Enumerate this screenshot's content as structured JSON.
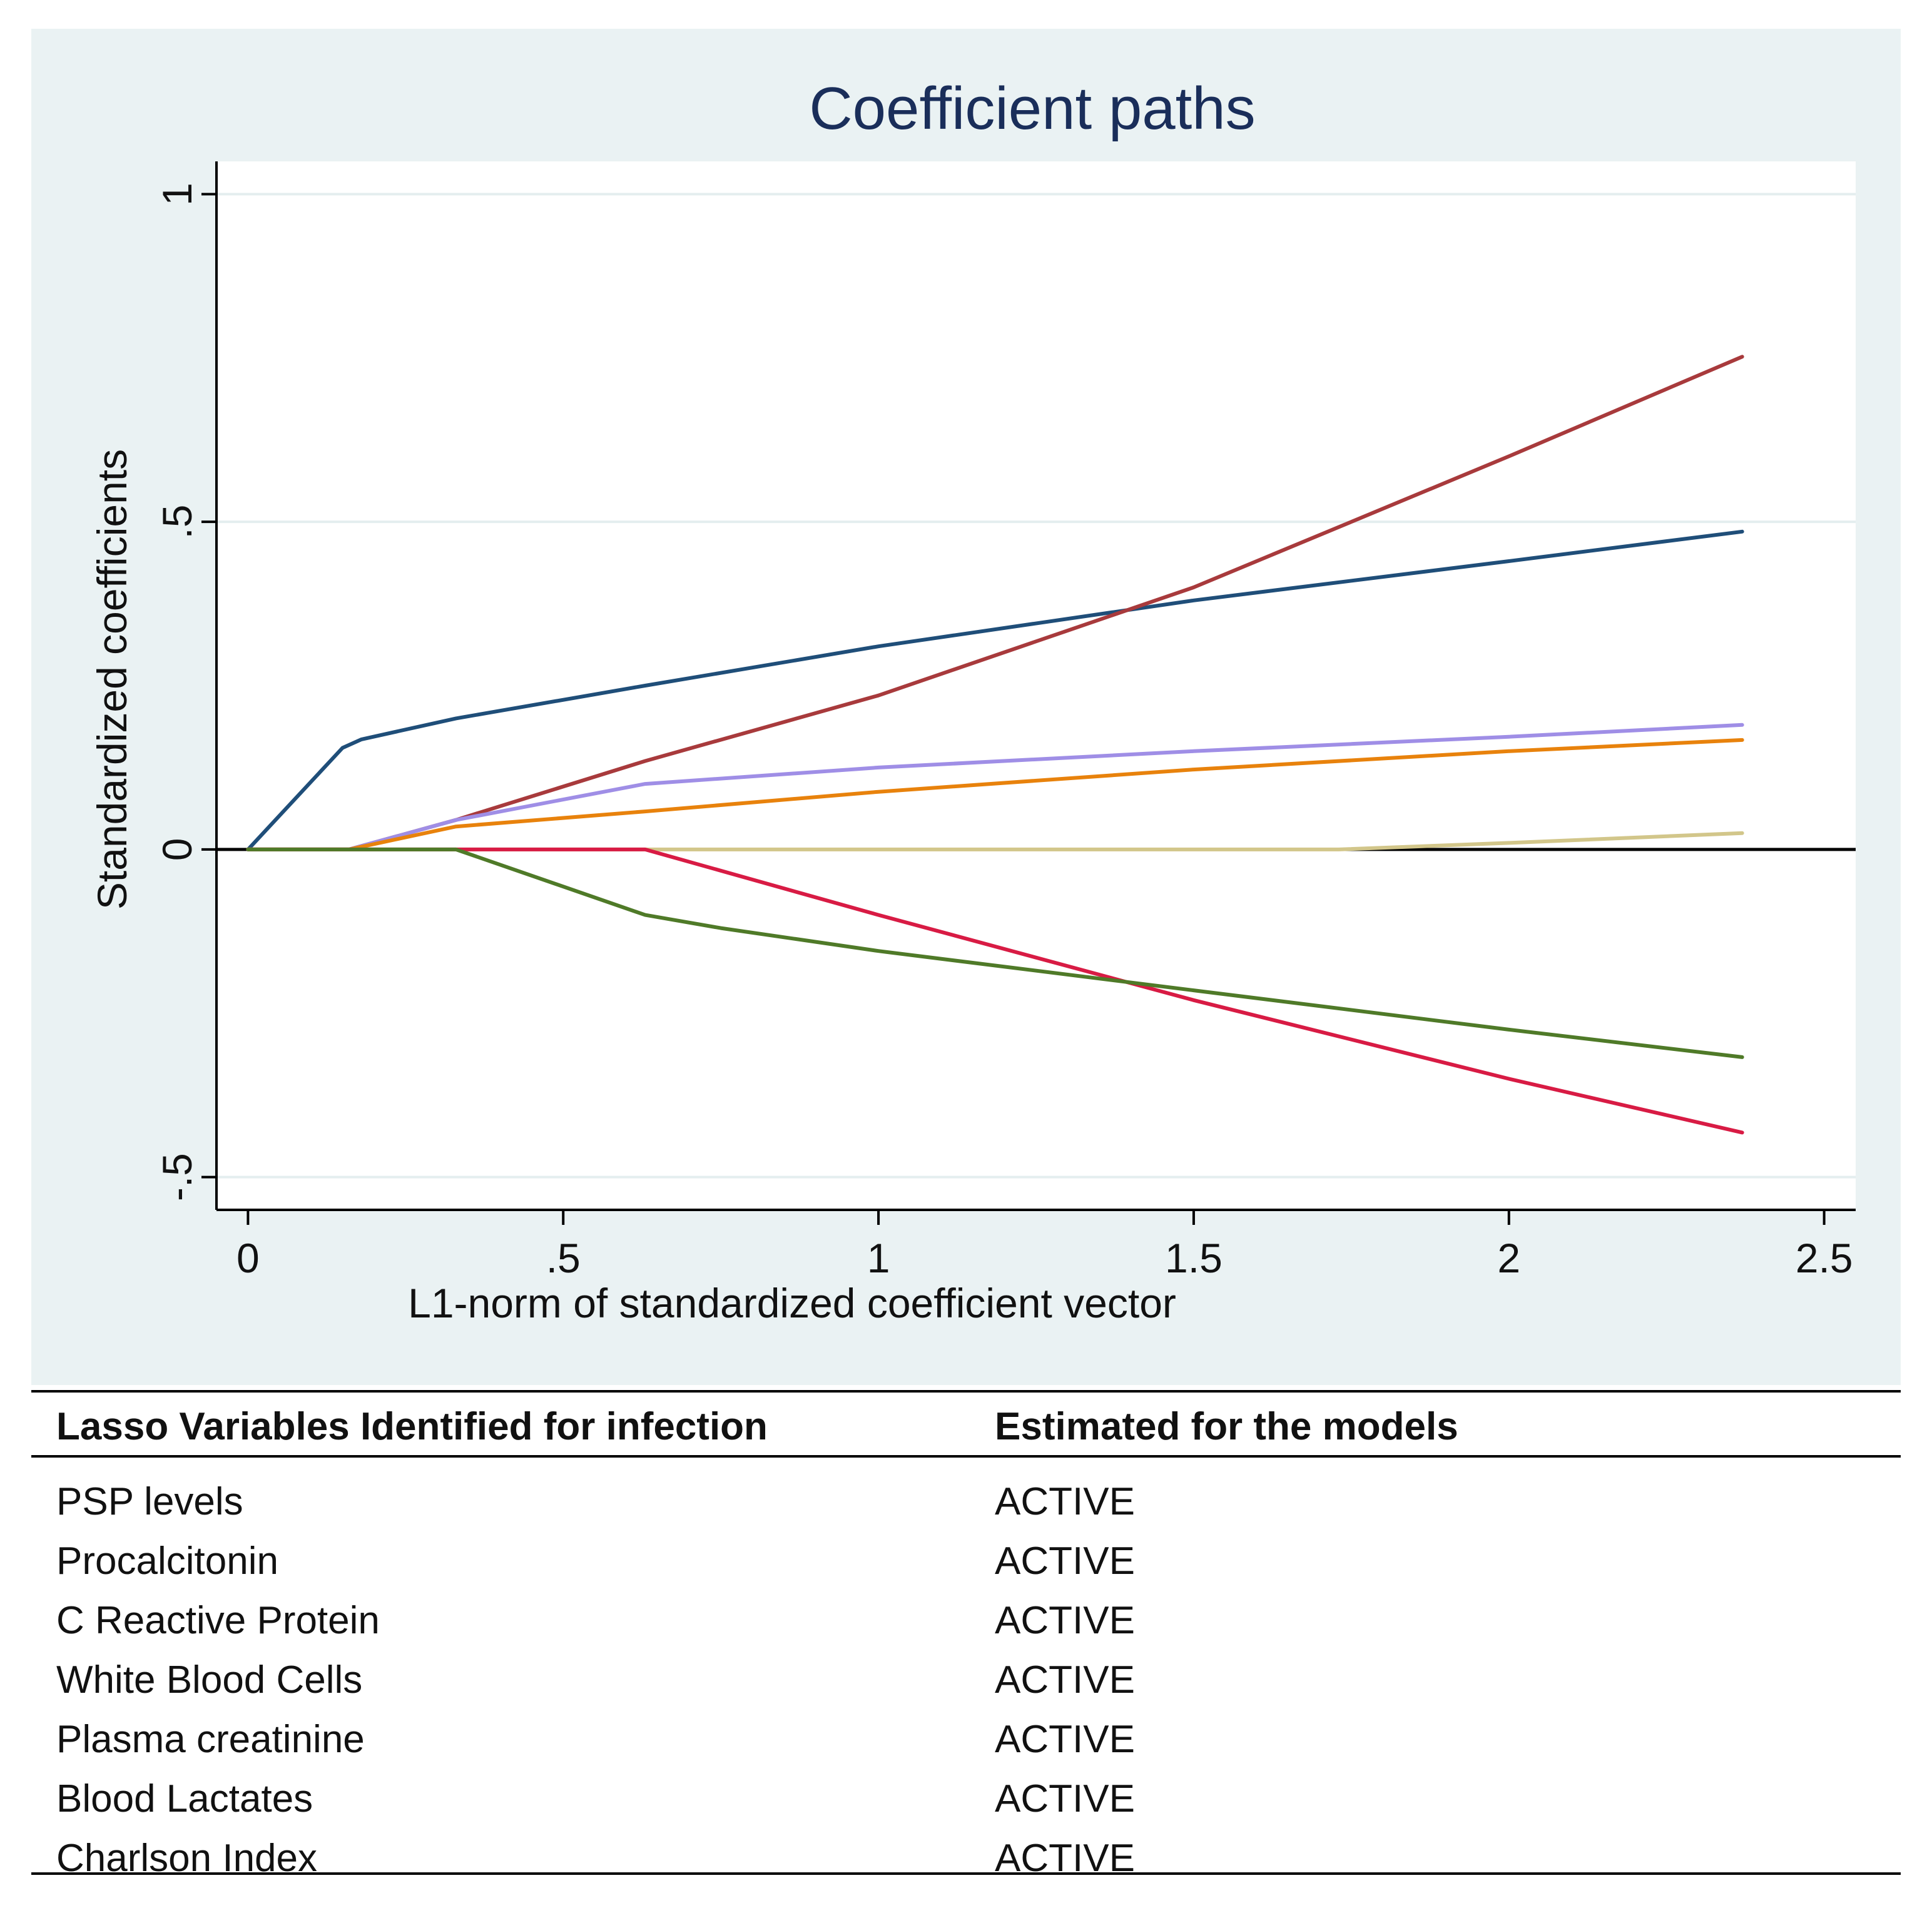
{
  "chart_data": {
    "type": "line",
    "title": "Coefficient paths",
    "xlabel": "L1-norm of standardized coefficient vector",
    "ylabel": "Standardized coefficients",
    "xlim": [
      -0.05,
      2.55
    ],
    "ylim": [
      -0.55,
      1.05
    ],
    "x_ticks": [
      0,
      0.5,
      1,
      1.5,
      2,
      2.5
    ],
    "x_tick_labels": [
      "0",
      ".5",
      "1",
      "1.5",
      "2",
      "2.5"
    ],
    "y_ticks": [
      -0.5,
      0,
      0.5,
      1
    ],
    "y_tick_labels": [
      "-.5",
      "0",
      ".5",
      "1"
    ],
    "grid": true,
    "series": [
      {
        "name": "series-1",
        "color": "#1f4e79",
        "x": [
          0,
          0.15,
          0.18,
          0.33,
          0.63,
          1.0,
          1.5,
          2.0,
          2.37
        ],
        "y": [
          0,
          0.155,
          0.168,
          0.2,
          0.25,
          0.31,
          0.38,
          0.44,
          0.485
        ]
      },
      {
        "name": "series-2",
        "color": "#a83a3c",
        "x": [
          0,
          0.16,
          0.33,
          0.63,
          1.0,
          1.5,
          2.0,
          2.37
        ],
        "y": [
          0,
          0,
          0.045,
          0.135,
          0.235,
          0.4,
          0.6,
          0.752
        ]
      },
      {
        "name": "series-3",
        "color": "#9f8ee6",
        "x": [
          0,
          0.16,
          0.33,
          0.63,
          1.0,
          1.5,
          2.0,
          2.37
        ],
        "y": [
          0,
          0,
          0.045,
          0.1,
          0.125,
          0.15,
          0.172,
          0.19
        ]
      },
      {
        "name": "series-4",
        "color": "#e8820c",
        "x": [
          0,
          0.16,
          0.33,
          0.63,
          1.0,
          1.5,
          2.0,
          2.37
        ],
        "y": [
          0,
          0,
          0.035,
          0.058,
          0.088,
          0.122,
          0.15,
          0.167
        ]
      },
      {
        "name": "series-5",
        "color": "#d2c68a",
        "x": [
          0,
          1.73,
          2.0,
          2.37
        ],
        "y": [
          0,
          0,
          0.01,
          0.025
        ]
      },
      {
        "name": "series-6",
        "color": "#d81b44",
        "x": [
          0,
          0.63,
          1.0,
          1.5,
          2.0,
          2.37
        ],
        "y": [
          0,
          0,
          -0.1,
          -0.23,
          -0.35,
          -0.432
        ]
      },
      {
        "name": "series-7",
        "color": "#4f7a28",
        "x": [
          0,
          0.33,
          0.63,
          0.75,
          1.0,
          1.5,
          2.0,
          2.37
        ],
        "y": [
          0,
          0,
          -0.1,
          -0.12,
          -0.155,
          -0.215,
          -0.275,
          -0.317
        ]
      }
    ]
  },
  "table": {
    "headers": [
      "Lasso Variables Identified for infection",
      "Estimated for the models"
    ],
    "rows": [
      [
        "PSP levels",
        "ACTIVE"
      ],
      [
        "Procalcitonin",
        "ACTIVE"
      ],
      [
        "C Reactive Protein",
        "ACTIVE"
      ],
      [
        "White Blood Cells",
        "ACTIVE"
      ],
      [
        "Plasma creatinine",
        "ACTIVE"
      ],
      [
        "Blood Lactates",
        "ACTIVE"
      ],
      [
        "Charlson Index",
        "ACTIVE"
      ]
    ]
  }
}
